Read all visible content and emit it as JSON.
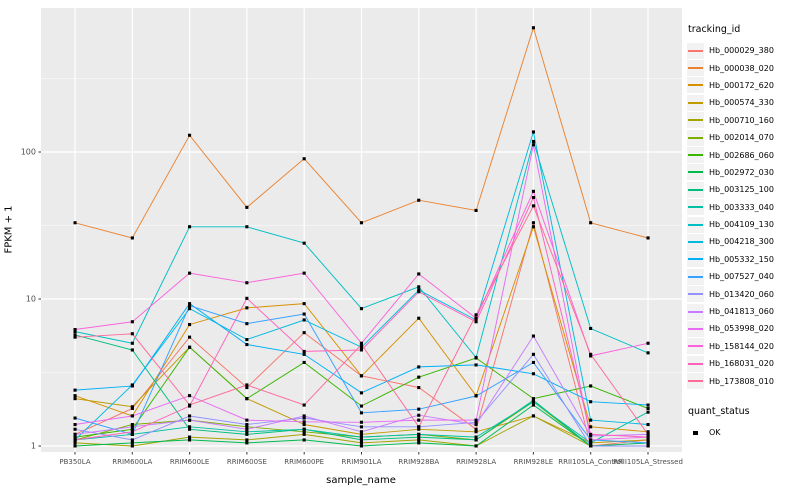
{
  "axes": {
    "x_title": "sample_name",
    "y_title": "FPKM + 1",
    "y_tick_labels": [
      "1",
      "10",
      "100"
    ],
    "y_tick_values": [
      1,
      10,
      100
    ],
    "y_minor_values": [
      3.1623,
      31.623,
      316.23
    ]
  },
  "legend": {
    "tracking_title": "tracking_id",
    "quant_title": "quant_status",
    "quant_items": [
      "OK"
    ]
  },
  "theme": {
    "panel_bg": "#EBEBEB",
    "grid_color": "#FFFFFF",
    "tick_text_color": "#4D4D4D",
    "axis_title_color": "#000000",
    "point_color": "#000000",
    "legend_key_bg": "#F2F2F2"
  },
  "chart_data": {
    "type": "line",
    "title": "",
    "xlabel": "sample_name",
    "ylabel": "FPKM + 1",
    "y_scale": "log10",
    "ylim": [
      1,
      955
    ],
    "grid": "white major gridlines at 1,10,100 and minor at half-decades on grey panel",
    "legend_position": "right",
    "point_shape": "small filled black square (quant_status OK)",
    "categories": [
      "PB350LA",
      "RRIM600LA",
      "RRIM600LE",
      "RRIM600SE",
      "RRIM600PE",
      "RRIM901LA",
      "RRIM928BA",
      "RRIM928LA",
      "RRIM928LE",
      "RRII105LA_Control",
      "RRII105LA_Stressed"
    ],
    "series": [
      {
        "name": "Hb_000029_380",
        "color": "#F8766D",
        "values": [
          1.2,
          1.8,
          5.5,
          2.5,
          5.9,
          3.0,
          2.5,
          1.3,
          33,
          1.0,
          1.1
        ]
      },
      {
        "name": "Hb_000038_020",
        "color": "#EA8331",
        "values": [
          33,
          26,
          130,
          42,
          90,
          33,
          47,
          40,
          700,
          33,
          26
        ]
      },
      {
        "name": "Hb_000172_620",
        "color": "#D89000",
        "values": [
          2.2,
          1.6,
          6.7,
          8.7,
          9.3,
          3.0,
          7.4,
          2.2,
          31,
          1.35,
          1.25
        ]
      },
      {
        "name": "Hb_000574_330",
        "color": "#C09B00",
        "values": [
          2.1,
          1.85,
          4.7,
          2.1,
          1.4,
          1.2,
          1.3,
          1.25,
          1.6,
          1.05,
          1.1
        ]
      },
      {
        "name": "Hb_000710_160",
        "color": "#A3A500",
        "values": [
          1.05,
          1.0,
          1.15,
          1.1,
          1.2,
          1.05,
          1.1,
          1.0,
          1.6,
          1.0,
          1.05
        ]
      },
      {
        "name": "Hb_002014_070",
        "color": "#7CAE00",
        "values": [
          1.1,
          1.4,
          1.5,
          1.35,
          1.25,
          1.15,
          1.2,
          1.1,
          2.0,
          1.0,
          1.0
        ]
      },
      {
        "name": "Hb_002686_060",
        "color": "#39B600",
        "values": [
          1.15,
          1.3,
          4.7,
          2.1,
          3.7,
          1.87,
          2.94,
          3.97,
          2.1,
          2.56,
          1.8
        ]
      },
      {
        "name": "Hb_002972_030",
        "color": "#00BB4E",
        "values": [
          1.0,
          1.05,
          1.1,
          1.05,
          1.1,
          1.0,
          1.05,
          1.0,
          1.9,
          1.0,
          1.0
        ]
      },
      {
        "name": "Hb_003125_100",
        "color": "#00BF7D",
        "values": [
          5.7,
          4.5,
          1.3,
          1.2,
          1.3,
          1.1,
          1.15,
          1.1,
          2.05,
          1.0,
          1.05
        ]
      },
      {
        "name": "Hb_003333_040",
        "color": "#00C1A3",
        "values": [
          1.1,
          1.2,
          1.35,
          1.25,
          1.3,
          1.15,
          1.2,
          1.15,
          2.0,
          1.05,
          1.7
        ]
      },
      {
        "name": "Hb_004109_130",
        "color": "#00BFC4",
        "values": [
          6.0,
          5.0,
          31,
          31,
          24,
          8.6,
          12.1,
          4.0,
          118,
          6.3,
          4.3
        ]
      },
      {
        "name": "Hb_004218_300",
        "color": "#00BAE0",
        "values": [
          1.1,
          2.6,
          8.6,
          5.3,
          7.2,
          4.7,
          11.5,
          7.2,
          137,
          1.5,
          1.4
        ]
      },
      {
        "name": "Hb_005332_150",
        "color": "#00B0F6",
        "values": [
          2.4,
          2.56,
          9.3,
          4.9,
          4.2,
          2.3,
          3.45,
          3.56,
          3.1,
          2.0,
          1.9
        ]
      },
      {
        "name": "Hb_007527_040",
        "color": "#35A2FF",
        "values": [
          1.55,
          1.2,
          9.0,
          6.8,
          7.9,
          1.68,
          1.78,
          2.19,
          3.7,
          1.1,
          1.05
        ]
      },
      {
        "name": "Hb_013420_060",
        "color": "#9590FF",
        "values": [
          1.3,
          1.1,
          1.6,
          1.4,
          1.55,
          1.35,
          1.35,
          1.45,
          4.2,
          1.0,
          1.0
        ]
      },
      {
        "name": "Hb_041813_060",
        "color": "#C77CFF",
        "values": [
          1.2,
          1.35,
          1.5,
          1.3,
          1.6,
          1.25,
          1.62,
          1.4,
          5.6,
          1.17,
          1.2
        ]
      },
      {
        "name": "Hb_053998_020",
        "color": "#E76BF3",
        "values": [
          1.4,
          1.6,
          2.2,
          1.5,
          1.46,
          1.45,
          1.5,
          1.5,
          112,
          1.1,
          1.15
        ]
      },
      {
        "name": "Hb_158144_020",
        "color": "#FA62DB",
        "values": [
          6.2,
          7.0,
          15,
          12.9,
          15,
          5.0,
          14.8,
          7.4,
          54,
          4.1,
          5.0
        ]
      },
      {
        "name": "Hb_168031_020",
        "color": "#FF62BC",
        "values": [
          1.1,
          1.25,
          1.87,
          10.1,
          4.4,
          4.5,
          11.2,
          7.0,
          49,
          1.2,
          1.15
        ]
      },
      {
        "name": "Hb_173808_010",
        "color": "#FF6A98",
        "values": [
          5.5,
          5.8,
          1.9,
          2.6,
          1.9,
          4.9,
          1.35,
          7.8,
          43,
          4.2,
          1.2
        ]
      }
    ],
    "quant_status": {
      "label": "OK",
      "point_shape": "filled-square",
      "point_color": "#000000"
    }
  }
}
